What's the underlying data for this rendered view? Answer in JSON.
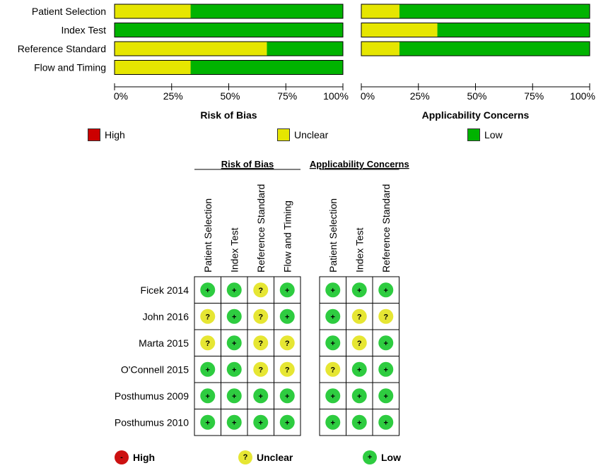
{
  "chart_data": [
    {
      "type": "bar",
      "stacked": true,
      "orientation": "horizontal",
      "title": "Risk of Bias",
      "categories": [
        "Patient Selection",
        "Index Test",
        "Reference Standard",
        "Flow and Timing"
      ],
      "series": [
        {
          "name": "High",
          "values": [
            0,
            0,
            0,
            0
          ]
        },
        {
          "name": "Unclear",
          "values": [
            33.3,
            0,
            66.7,
            33.3
          ]
        },
        {
          "name": "Low",
          "values": [
            66.7,
            100,
            33.3,
            66.7
          ]
        }
      ],
      "xlim": [
        0,
        100
      ],
      "xticks": [
        "0%",
        "25%",
        "50%",
        "75%",
        "100%"
      ]
    },
    {
      "type": "bar",
      "stacked": true,
      "orientation": "horizontal",
      "title": "Applicability Concerns",
      "categories": [
        "Patient Selection",
        "Index Test",
        "Reference Standard"
      ],
      "series": [
        {
          "name": "High",
          "values": [
            0,
            0,
            0
          ]
        },
        {
          "name": "Unclear",
          "values": [
            16.7,
            33.3,
            16.7
          ]
        },
        {
          "name": "Low",
          "values": [
            83.3,
            66.7,
            83.3
          ]
        }
      ],
      "xlim": [
        0,
        100
      ],
      "xticks": [
        "0%",
        "25%",
        "50%",
        "75%",
        "100%"
      ]
    },
    {
      "type": "table",
      "groups": [
        {
          "title": "Risk of Bias",
          "columns": [
            "Patient Selection",
            "Index Test",
            "Reference Standard",
            "Flow and Timing"
          ]
        },
        {
          "title": "Applicability Concerns",
          "columns": [
            "Patient Selection",
            "Index Test",
            "Reference Standard"
          ]
        }
      ],
      "rows": [
        {
          "study": "Ficek 2014",
          "rob": [
            "low",
            "low",
            "unclear",
            "low"
          ],
          "app": [
            "low",
            "low",
            "low"
          ]
        },
        {
          "study": "John 2016",
          "rob": [
            "unclear",
            "low",
            "unclear",
            "low"
          ],
          "app": [
            "low",
            "unclear",
            "unclear"
          ]
        },
        {
          "study": "Marta 2015",
          "rob": [
            "unclear",
            "low",
            "unclear",
            "unclear"
          ],
          "app": [
            "low",
            "unclear",
            "low"
          ]
        },
        {
          "study": "O'Connell 2015",
          "rob": [
            "low",
            "low",
            "unclear",
            "unclear"
          ],
          "app": [
            "unclear",
            "low",
            "low"
          ]
        },
        {
          "study": "Posthumus 2009",
          "rob": [
            "low",
            "low",
            "low",
            "low"
          ],
          "app": [
            "low",
            "low",
            "low"
          ]
        },
        {
          "study": "Posthumus 2010",
          "rob": [
            "low",
            "low",
            "low",
            "low"
          ],
          "app": [
            "low",
            "low",
            "low"
          ]
        }
      ]
    }
  ],
  "legend": {
    "high": "High",
    "unclear": "Unclear",
    "low": "Low"
  },
  "symbols": {
    "low": "+",
    "unclear": "?",
    "high": "-"
  },
  "colors": {
    "high": "#cc0000",
    "unclear": "#e6e600",
    "low": "#00b300",
    "low_circle": "#2ecc40",
    "unclear_circle": "#e6e633",
    "high_circle": "#cc1111"
  }
}
